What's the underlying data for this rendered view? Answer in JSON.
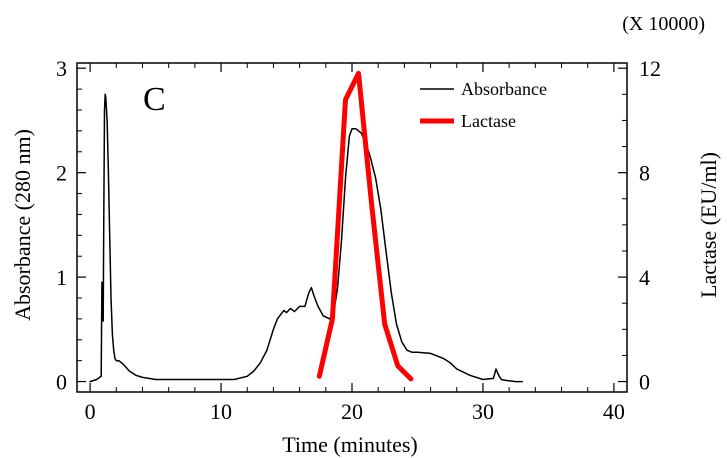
{
  "chart_data": {
    "type": "line",
    "panel_label": "C",
    "xlabel": "Time (minutes)",
    "ylabel_left": "Absorbance (280 nm)",
    "ylabel_right": "Lactase (EU/ml)",
    "right_axis_multiplier": "(X 10000)",
    "xlim": [
      -1,
      41
    ],
    "ylim_left": [
      -0.1,
      3.05
    ],
    "ylim_right": [
      -0.4,
      12.2
    ],
    "x_ticks": [
      0,
      10,
      20,
      30,
      40
    ],
    "x_tick_labels": [
      "0",
      "10",
      "20",
      "30",
      "40"
    ],
    "y_left_ticks": [
      0,
      1,
      2,
      3
    ],
    "y_left_tick_labels": [
      "0",
      "1",
      "2",
      "3"
    ],
    "y_right_ticks": [
      0,
      4,
      8,
      12
    ],
    "y_right_tick_labels": [
      "0",
      "4",
      "8",
      "12"
    ],
    "grid": false,
    "legend_position": "top-right",
    "series": [
      {
        "name": "Absorbance",
        "axis": "left",
        "color": "#000000",
        "x": [
          0.0,
          0.5,
          0.85,
          0.9,
          0.95,
          1.0,
          1.05,
          1.1,
          1.15,
          1.2,
          1.3,
          1.4,
          1.5,
          1.6,
          1.7,
          1.8,
          1.9,
          2.0,
          2.2,
          2.5,
          3.0,
          3.5,
          4.0,
          4.5,
          5.0,
          6.0,
          8.0,
          10.0,
          11.0,
          12.0,
          12.5,
          13.0,
          13.5,
          14.0,
          14.3,
          14.6,
          14.8,
          15.0,
          15.3,
          15.6,
          16.0,
          16.4,
          16.7,
          16.9,
          17.1,
          17.4,
          17.8,
          18.3,
          18.6,
          18.9,
          19.2,
          19.5,
          19.8,
          20.0,
          20.3,
          20.7,
          21.0,
          21.4,
          21.8,
          22.2,
          22.6,
          23.0,
          23.4,
          23.8,
          24.2,
          24.6,
          25.0,
          26.0,
          27.0,
          27.5,
          28.0,
          29.0,
          30.0,
          30.8,
          31.0,
          31.2,
          31.4,
          31.8,
          32.5,
          33.0
        ],
        "y": [
          0.0,
          0.02,
          0.05,
          0.95,
          0.6,
          0.58,
          1.6,
          2.6,
          2.75,
          2.72,
          2.5,
          2.0,
          1.4,
          0.8,
          0.45,
          0.3,
          0.22,
          0.2,
          0.2,
          0.17,
          0.1,
          0.06,
          0.04,
          0.03,
          0.02,
          0.02,
          0.02,
          0.02,
          0.02,
          0.05,
          0.1,
          0.18,
          0.3,
          0.5,
          0.6,
          0.65,
          0.68,
          0.66,
          0.7,
          0.67,
          0.72,
          0.72,
          0.85,
          0.9,
          0.82,
          0.72,
          0.63,
          0.6,
          0.66,
          0.9,
          1.35,
          1.95,
          2.35,
          2.42,
          2.42,
          2.38,
          2.3,
          2.15,
          1.95,
          1.65,
          1.25,
          0.85,
          0.55,
          0.38,
          0.3,
          0.28,
          0.28,
          0.27,
          0.22,
          0.18,
          0.12,
          0.06,
          0.02,
          0.03,
          0.12,
          0.06,
          0.02,
          0.01,
          0.0,
          0.0
        ]
      },
      {
        "name": "Lactase",
        "axis": "right",
        "color": "#ff0000",
        "x": [
          17.5,
          18.5,
          19.5,
          20.5,
          21.5,
          22.5,
          23.5,
          24.5
        ],
        "y": [
          0.2,
          2.4,
          10.8,
          11.8,
          6.8,
          2.2,
          0.6,
          0.1
        ]
      }
    ]
  }
}
